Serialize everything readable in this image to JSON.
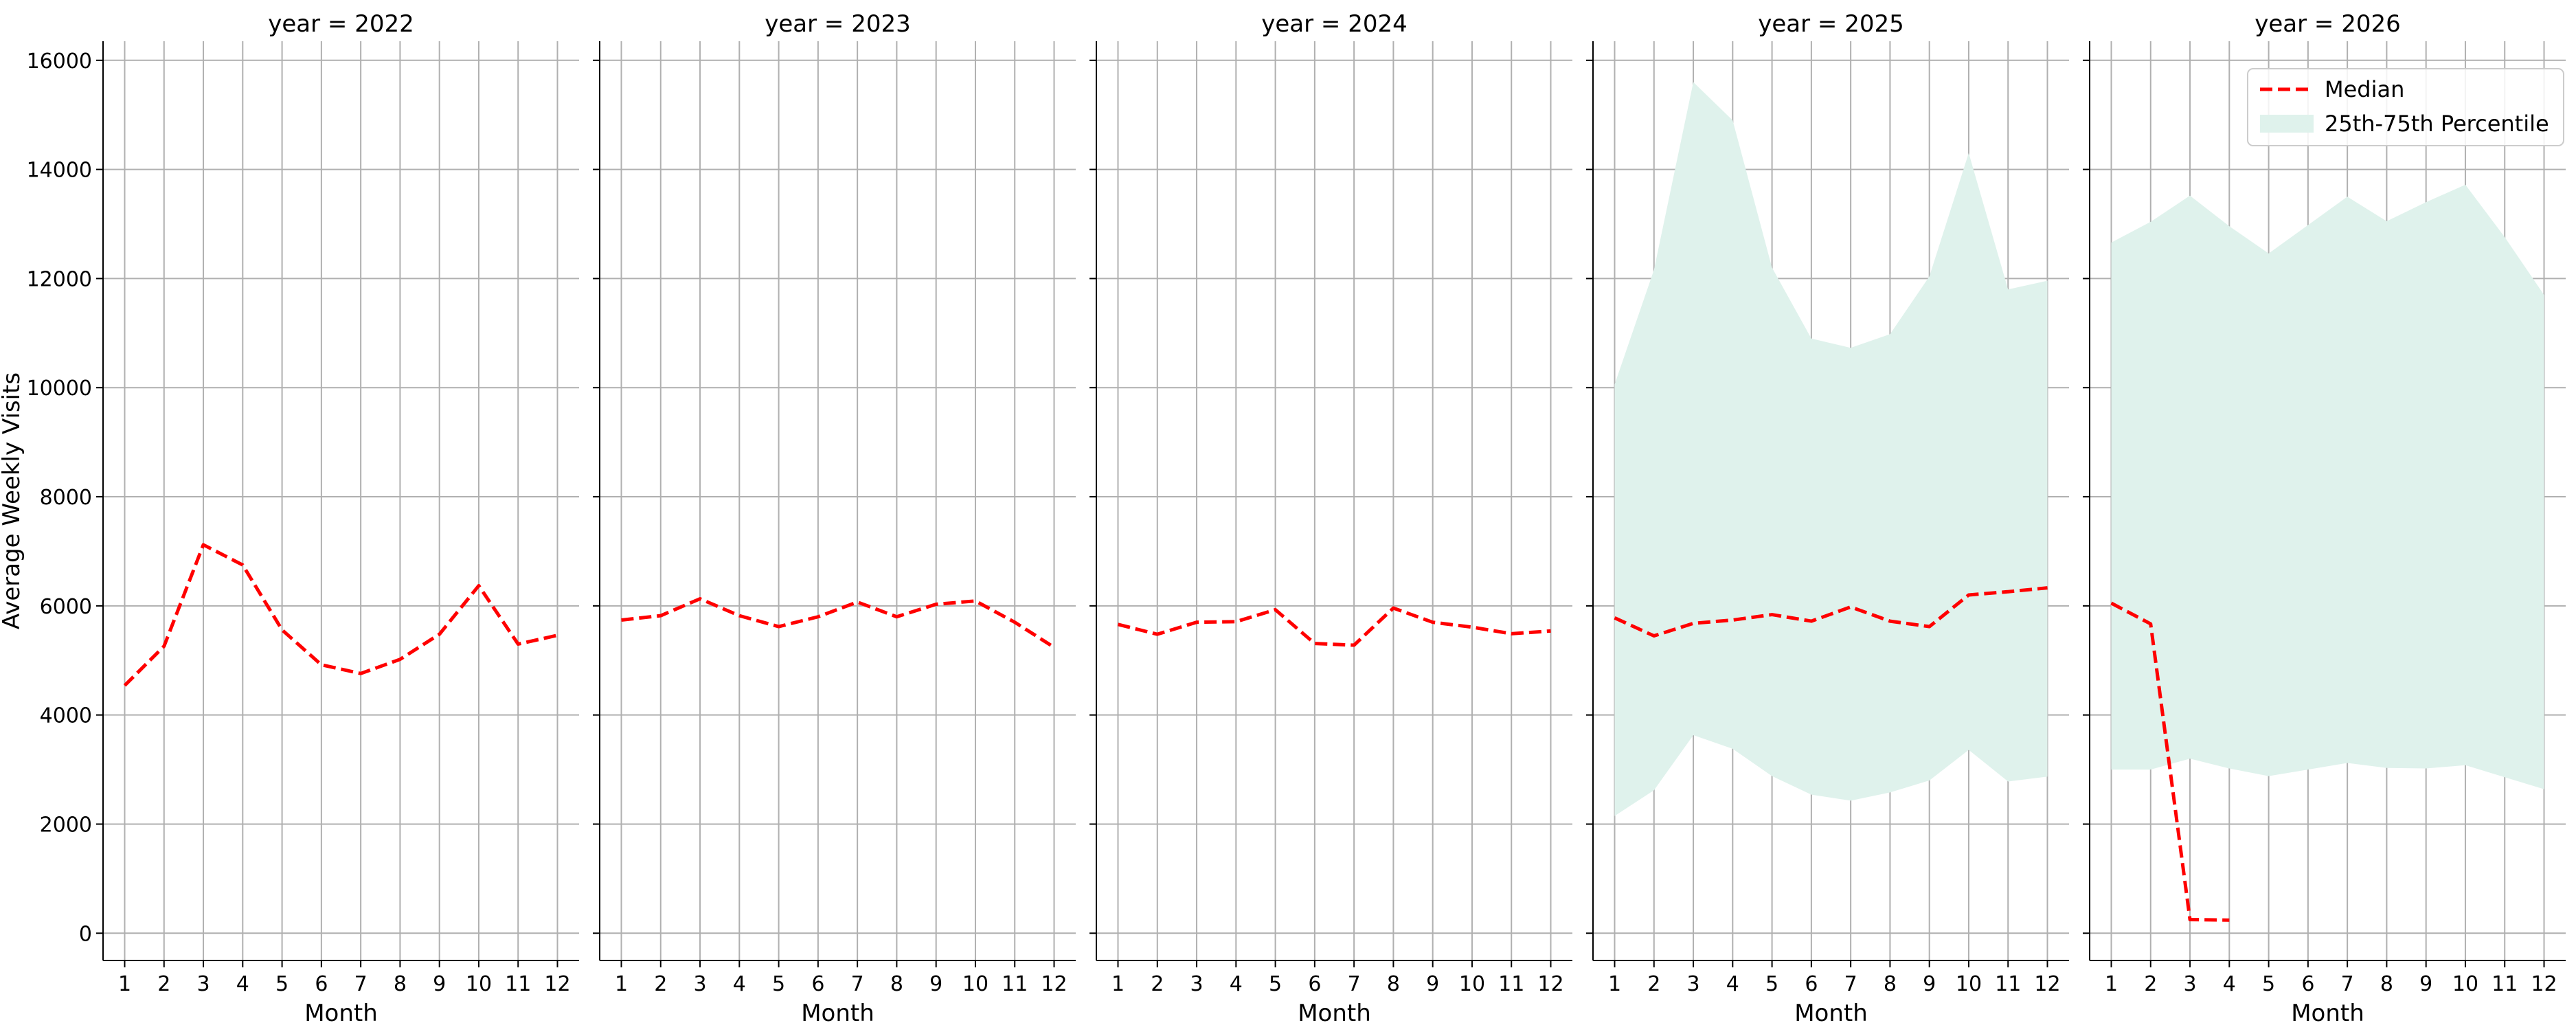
{
  "chart_data": {
    "type": "line",
    "facet_var": "year",
    "y_label": "Average Weekly Visits",
    "y_ticks": [
      0,
      2000,
      4000,
      6000,
      8000,
      10000,
      12000,
      14000,
      16000
    ],
    "x_ticks": [
      1,
      2,
      3,
      4,
      5,
      6,
      7,
      8,
      9,
      10,
      11,
      12
    ],
    "ylim": [
      -500,
      16350
    ],
    "xlim": [
      0.45,
      12.55
    ],
    "grid": true,
    "colors": {
      "median": "#ff0000",
      "band": "#dff2ec",
      "grid": "#b0b0b0",
      "axis": "#000000"
    },
    "legend": {
      "placement": "top-right",
      "panel": 4,
      "entries": [
        {
          "label": "Median",
          "kind": "dashed-line"
        },
        {
          "label": "25th-75th Percentile",
          "kind": "patch"
        }
      ]
    },
    "panels": [
      {
        "title": "year = 2022",
        "x_label": "Month",
        "median": [
          [
            1,
            4540
          ],
          [
            2,
            5260
          ],
          [
            3,
            7120
          ],
          [
            4,
            6750
          ],
          [
            5,
            5560
          ],
          [
            6,
            4920
          ],
          [
            7,
            4760
          ],
          [
            8,
            5020
          ],
          [
            9,
            5480
          ],
          [
            10,
            6370
          ],
          [
            11,
            5300
          ],
          [
            12,
            5460
          ]
        ]
      },
      {
        "title": "year = 2023",
        "x_label": "Month",
        "median": [
          [
            1,
            5740
          ],
          [
            2,
            5820
          ],
          [
            3,
            6130
          ],
          [
            4,
            5820
          ],
          [
            5,
            5620
          ],
          [
            6,
            5800
          ],
          [
            7,
            6070
          ],
          [
            8,
            5800
          ],
          [
            9,
            6030
          ],
          [
            10,
            6090
          ],
          [
            11,
            5700
          ],
          [
            12,
            5240
          ]
        ]
      },
      {
        "title": "year = 2024",
        "x_label": "Month",
        "median": [
          [
            1,
            5660
          ],
          [
            2,
            5480
          ],
          [
            3,
            5700
          ],
          [
            4,
            5710
          ],
          [
            5,
            5930
          ],
          [
            6,
            5310
          ],
          [
            7,
            5280
          ],
          [
            8,
            5960
          ],
          [
            9,
            5700
          ],
          [
            10,
            5610
          ],
          [
            11,
            5490
          ],
          [
            12,
            5540
          ]
        ]
      },
      {
        "title": "year = 2025",
        "x_label": "Month",
        "median": [
          [
            1,
            5780
          ],
          [
            2,
            5450
          ],
          [
            3,
            5680
          ],
          [
            4,
            5740
          ],
          [
            5,
            5840
          ],
          [
            6,
            5720
          ],
          [
            7,
            5980
          ],
          [
            8,
            5720
          ],
          [
            9,
            5620
          ],
          [
            10,
            6200
          ],
          [
            11,
            6260
          ],
          [
            12,
            6330
          ]
        ],
        "p25": [
          [
            1,
            2150
          ],
          [
            2,
            2620
          ],
          [
            3,
            3630
          ],
          [
            4,
            3380
          ],
          [
            5,
            2880
          ],
          [
            6,
            2540
          ],
          [
            7,
            2430
          ],
          [
            8,
            2580
          ],
          [
            9,
            2800
          ],
          [
            10,
            3360
          ],
          [
            11,
            2780
          ],
          [
            12,
            2870
          ]
        ],
        "p75": [
          [
            1,
            10060
          ],
          [
            2,
            12160
          ],
          [
            3,
            15600
          ],
          [
            4,
            14900
          ],
          [
            5,
            12200
          ],
          [
            6,
            10900
          ],
          [
            7,
            10730
          ],
          [
            8,
            10980
          ],
          [
            9,
            12040
          ],
          [
            10,
            14300
          ],
          [
            11,
            11800
          ],
          [
            12,
            11960
          ]
        ]
      },
      {
        "title": "year = 2026",
        "x_label": "Month",
        "median": [
          [
            1,
            6050
          ],
          [
            2,
            5670
          ],
          [
            3,
            250
          ],
          [
            4,
            240
          ]
        ],
        "p25": [
          [
            1,
            3000
          ],
          [
            2,
            3000
          ],
          [
            3,
            3200
          ],
          [
            4,
            3020
          ],
          [
            5,
            2880
          ],
          [
            6,
            3000
          ],
          [
            7,
            3120
          ],
          [
            8,
            3030
          ],
          [
            9,
            3020
          ],
          [
            10,
            3080
          ],
          [
            11,
            2860
          ],
          [
            12,
            2640
          ]
        ],
        "p75": [
          [
            1,
            12660
          ],
          [
            2,
            13040
          ],
          [
            3,
            13520
          ],
          [
            4,
            12960
          ],
          [
            5,
            12460
          ],
          [
            6,
            12980
          ],
          [
            7,
            13500
          ],
          [
            8,
            13050
          ],
          [
            9,
            13400
          ],
          [
            10,
            13720
          ],
          [
            11,
            12760
          ],
          [
            12,
            11700
          ]
        ]
      }
    ]
  }
}
